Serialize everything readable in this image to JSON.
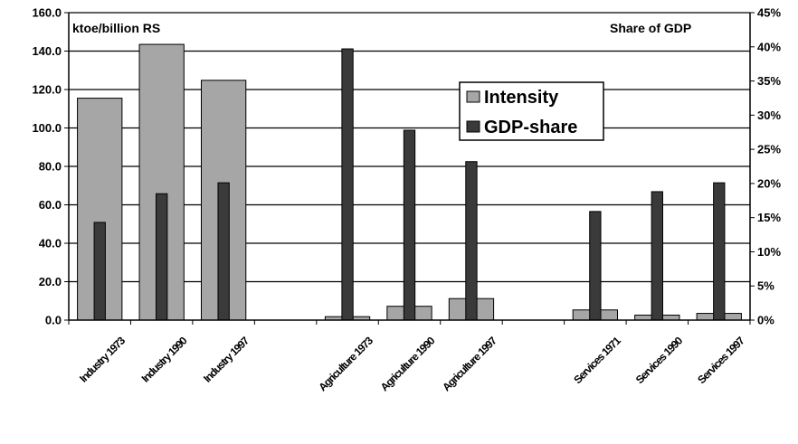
{
  "chart_data": {
    "type": "bar",
    "categories": [
      "Industry 1973",
      "Industry 1990",
      "Industry 1997",
      "",
      "Agriculture 1973",
      "Agriculture 1990",
      "Agriculture 1997",
      "",
      "Services 1971",
      "Services 1990",
      "Services 1997"
    ],
    "series": [
      {
        "name": "Intensity",
        "axis": "left",
        "color": "#a6a6a6",
        "values": [
          115.5,
          143.5,
          124.8,
          0,
          1.8,
          7.2,
          11.2,
          0,
          5.3,
          2.6,
          3.5
        ]
      },
      {
        "name": "GDP-share",
        "axis": "right",
        "color": "#3a3a3a",
        "values": [
          0.143,
          0.185,
          0.201,
          0,
          0.397,
          0.278,
          0.232,
          0,
          0.159,
          0.188,
          0.201
        ]
      }
    ],
    "ylabel": "ktoe/billion RS",
    "y2label": "Share of GDP",
    "ylim": [
      0,
      160
    ],
    "y2lim": [
      0,
      0.45
    ],
    "yticks": [
      "0.0",
      "20.0",
      "40.0",
      "60.0",
      "80.0",
      "100.0",
      "120.0",
      "140.0",
      "160.0"
    ],
    "y2ticks": [
      "0%",
      "5%",
      "10%",
      "15%",
      "20%",
      "25%",
      "30%",
      "35%",
      "40%",
      "45%"
    ],
    "grid": "major horizontal",
    "legend": "center-right"
  }
}
